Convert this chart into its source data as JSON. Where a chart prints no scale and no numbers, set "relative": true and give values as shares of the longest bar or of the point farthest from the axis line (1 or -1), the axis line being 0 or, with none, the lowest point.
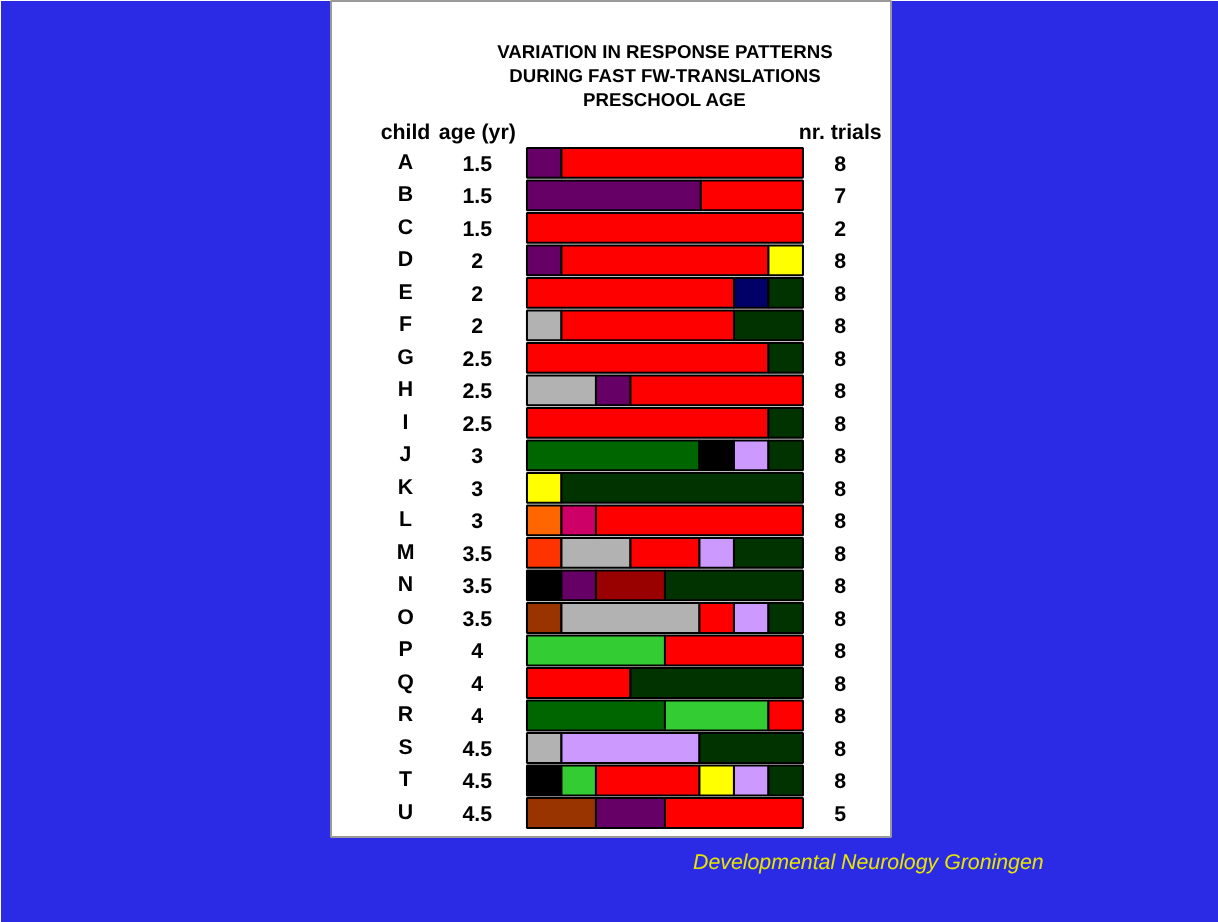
{
  "chart_data": {
    "type": "bar",
    "orientation": "horizontal",
    "stacked": true,
    "relative": true,
    "title": "VARIATION IN RESPONSE PATTERNS\nDURING FAST FW-TRANSLATIONS\nPRESCHOOL AGE",
    "ylabel": "child",
    "categories": [
      "A",
      "B",
      "C",
      "D",
      "E",
      "F",
      "G",
      "H",
      "I",
      "J",
      "K",
      "L",
      "M",
      "N",
      "O",
      "P",
      "Q",
      "R",
      "S",
      "T",
      "U"
    ],
    "series": [
      {
        "values": [
          0.125,
          0.63,
          1,
          0.125,
          0.75,
          0.125,
          0.875,
          0.25,
          0.875,
          0.625,
          0.125,
          0.125,
          0.125,
          0.125,
          0.125,
          0.5,
          0.375,
          0.5,
          0.125,
          0.125,
          0.25
        ],
        "colors": [
          "#660066",
          "#660066",
          "#ff0000",
          "#660066",
          "#ff0000",
          "#b2b2b2",
          "#ff0000",
          "#b2b2b2",
          "#ff0000",
          "#006600",
          "#ffff00",
          "#ff6600",
          "#ff3300",
          "#000000",
          "#993300",
          "#33cc33",
          "#ff0000",
          "#006600",
          "#b2b2b2",
          "#000000",
          "#993300"
        ]
      },
      {
        "values": [
          0.875,
          0.37,
          null,
          0.75,
          0.125,
          0.625,
          0.125,
          0.125,
          0.125,
          0.125,
          0.875,
          0.125,
          0.25,
          0.125,
          0.5,
          0.5,
          0.625,
          0.375,
          0.5,
          0.125,
          0.25
        ],
        "colors": [
          "#ff0000",
          "#ff0000",
          null,
          "#ff0000",
          "#000066",
          "#ff0000",
          "#003300",
          "#660066",
          "#003300",
          "#000000",
          "#003300",
          "#cc0066",
          "#b2b2b2",
          "#660066",
          "#b2b2b2",
          "#ff0000",
          "#003300",
          "#33cc33",
          "#cc99ff",
          "#33cc33",
          "#660066"
        ]
      },
      {
        "values": [
          null,
          null,
          null,
          0.125,
          0.125,
          0.25,
          null,
          0.625,
          null,
          0.125,
          null,
          0.75,
          0.25,
          0.25,
          0.125,
          null,
          null,
          0.125,
          0.375,
          0.375,
          0.5
        ],
        "colors": [
          null,
          null,
          null,
          "#ffff00",
          "#003300",
          "#003300",
          null,
          "#ff0000",
          null,
          "#cc99ff",
          null,
          "#ff0000",
          "#ff0000",
          "#990000",
          "#ff0000",
          null,
          null,
          "#ff0000",
          "#003300",
          "#ff0000",
          "#ff0000"
        ]
      },
      {
        "values": [
          null,
          null,
          null,
          null,
          null,
          null,
          null,
          null,
          null,
          0.125,
          null,
          null,
          0.125,
          0.5,
          0.125,
          null,
          null,
          null,
          null,
          0.125,
          null
        ],
        "colors": [
          null,
          null,
          null,
          null,
          null,
          null,
          null,
          null,
          null,
          "#003300",
          null,
          null,
          "#cc99ff",
          "#003300",
          "#cc99ff",
          null,
          null,
          null,
          null,
          "#ffff00",
          null
        ]
      },
      {
        "values": [
          null,
          null,
          null,
          null,
          null,
          null,
          null,
          null,
          null,
          null,
          null,
          null,
          0.25,
          null,
          0.125,
          null,
          null,
          null,
          null,
          0.125,
          null
        ],
        "colors": [
          null,
          null,
          null,
          null,
          null,
          null,
          null,
          null,
          null,
          null,
          null,
          null,
          "#003300",
          null,
          "#003300",
          null,
          null,
          null,
          null,
          "#cc99ff",
          null
        ]
      },
      {
        "values": [
          null,
          null,
          null,
          null,
          null,
          null,
          null,
          null,
          null,
          null,
          null,
          null,
          null,
          null,
          null,
          null,
          null,
          null,
          null,
          0.125,
          null
        ],
        "colors": [
          null,
          null,
          null,
          null,
          null,
          null,
          null,
          null,
          null,
          null,
          null,
          null,
          null,
          null,
          null,
          null,
          null,
          null,
          null,
          "#003300",
          null
        ]
      }
    ],
    "annotations": [
      "age (yr)",
      "nr. trials",
      "Developmental Neurology Groningen",
      "1.5",
      "1.5",
      "1.5",
      "2",
      "2",
      "2",
      "2.5",
      "2.5",
      "2.5",
      "3",
      "3",
      "3",
      "3.5",
      "3.5",
      "3.5",
      "4",
      "4",
      "4",
      "4.5",
      "4.5",
      "4.5",
      "8",
      "7",
      "2",
      "8",
      "8",
      "8",
      "8",
      "8",
      "8",
      "8",
      "8",
      "8",
      "8",
      "8",
      "8",
      "8",
      "8",
      "8",
      "8",
      "8",
      "5"
    ]
  }
}
